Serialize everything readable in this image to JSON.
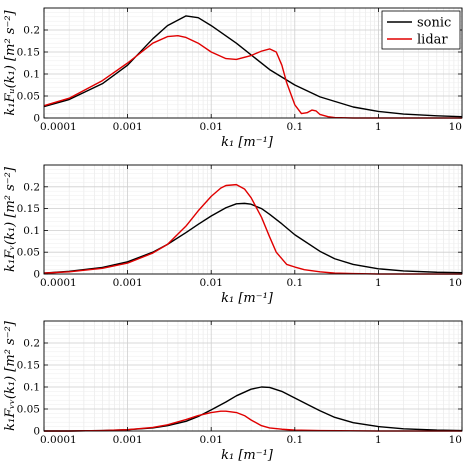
{
  "chart_data": [
    {
      "type": "line",
      "xscale": "log",
      "xlim": [
        0.0001,
        10
      ],
      "ylim": [
        0,
        0.25
      ],
      "grid": true,
      "xticks": [
        "0.0001",
        "0.001",
        "0.01",
        "0.1",
        "1",
        "10"
      ],
      "yticks": [
        "0",
        "0.05",
        "0.1",
        "0.15",
        "0.2"
      ],
      "ytick_values": [
        0,
        0.05,
        0.1,
        0.15,
        0.2
      ],
      "xlabel": "k₁ [m⁻¹]",
      "ylabel": "k₁Fᵤ(k₁) [m² s⁻²]",
      "legend": {
        "position": "top-right",
        "entries": [
          "sonic",
          "lidar"
        ]
      },
      "series": [
        {
          "name": "sonic",
          "color": "#000000",
          "x": [
            0.0001,
            0.0002,
            0.0005,
            0.001,
            0.002,
            0.003,
            0.005,
            0.007,
            0.01,
            0.02,
            0.05,
            0.1,
            0.2,
            0.5,
            1,
            2,
            5,
            10
          ],
          "y": [
            0.026,
            0.042,
            0.078,
            0.12,
            0.18,
            0.21,
            0.232,
            0.228,
            0.21,
            0.17,
            0.11,
            0.075,
            0.048,
            0.025,
            0.015,
            0.009,
            0.005,
            0.003
          ]
        },
        {
          "name": "lidar",
          "color": "#e00000",
          "x": [
            0.0001,
            0.0002,
            0.0005,
            0.001,
            0.002,
            0.003,
            0.004,
            0.005,
            0.007,
            0.01,
            0.015,
            0.02,
            0.03,
            0.04,
            0.05,
            0.06,
            0.07,
            0.08,
            0.1,
            0.12,
            0.14,
            0.16,
            0.18,
            0.2,
            0.25,
            0.3,
            0.5,
            1,
            10
          ],
          "y": [
            0.028,
            0.045,
            0.085,
            0.125,
            0.17,
            0.185,
            0.187,
            0.183,
            0.17,
            0.15,
            0.135,
            0.133,
            0.142,
            0.152,
            0.157,
            0.15,
            0.12,
            0.08,
            0.03,
            0.01,
            0.012,
            0.018,
            0.016,
            0.008,
            0.003,
            0.001,
            0.0,
            0.0,
            0.0
          ]
        }
      ]
    },
    {
      "type": "line",
      "xscale": "log",
      "xlim": [
        0.0001,
        10
      ],
      "ylim": [
        0,
        0.25
      ],
      "grid": true,
      "xticks": [
        "0.0001",
        "0.001",
        "0.01",
        "0.1",
        "1",
        "10"
      ],
      "yticks": [
        "0",
        "0.05",
        "0.1",
        "0.15",
        "0.2"
      ],
      "ytick_values": [
        0,
        0.05,
        0.1,
        0.15,
        0.2
      ],
      "xlabel": "k₁ [m⁻¹]",
      "ylabel": "k₁Fᵥ(k₁) [m² s⁻²]",
      "series": [
        {
          "name": "sonic",
          "color": "#000000",
          "x": [
            0.0001,
            0.0002,
            0.0005,
            0.001,
            0.002,
            0.003,
            0.005,
            0.007,
            0.01,
            0.015,
            0.02,
            0.025,
            0.03,
            0.04,
            0.05,
            0.07,
            0.1,
            0.2,
            0.3,
            0.5,
            1,
            2,
            5,
            10
          ],
          "y": [
            0.002,
            0.006,
            0.015,
            0.028,
            0.05,
            0.068,
            0.095,
            0.114,
            0.133,
            0.152,
            0.161,
            0.162,
            0.16,
            0.15,
            0.137,
            0.115,
            0.09,
            0.052,
            0.035,
            0.022,
            0.012,
            0.007,
            0.004,
            0.003
          ]
        },
        {
          "name": "lidar",
          "color": "#e00000",
          "x": [
            0.0001,
            0.0002,
            0.0005,
            0.001,
            0.002,
            0.003,
            0.005,
            0.007,
            0.01,
            0.013,
            0.015,
            0.02,
            0.025,
            0.03,
            0.04,
            0.05,
            0.06,
            0.08,
            0.1,
            0.13,
            0.2,
            0.3,
            0.5,
            1,
            10
          ],
          "y": [
            0.002,
            0.005,
            0.013,
            0.025,
            0.048,
            0.068,
            0.11,
            0.145,
            0.178,
            0.197,
            0.203,
            0.205,
            0.195,
            0.175,
            0.13,
            0.085,
            0.05,
            0.022,
            0.016,
            0.01,
            0.005,
            0.002,
            0.001,
            0.0,
            0.0
          ]
        }
      ]
    },
    {
      "type": "line",
      "xscale": "log",
      "xlim": [
        0.0001,
        10
      ],
      "ylim": [
        0,
        0.25
      ],
      "grid": true,
      "xticks": [
        "0.0001",
        "0.001",
        "0.01",
        "0.1",
        "1",
        "10"
      ],
      "yticks": [
        "0",
        "0.05",
        "0.1",
        "0.15",
        "0.2"
      ],
      "ytick_values": [
        0,
        0.05,
        0.1,
        0.15,
        0.2
      ],
      "xlabel": "k₁ [m⁻¹]",
      "ylabel": "k₁Fᵥᵥ(k₁) [m² s⁻²]",
      "series": [
        {
          "name": "sonic",
          "color": "#000000",
          "x": [
            0.0001,
            0.0002,
            0.0005,
            0.001,
            0.002,
            0.003,
            0.005,
            0.007,
            0.01,
            0.015,
            0.02,
            0.03,
            0.04,
            0.05,
            0.07,
            0.1,
            0.15,
            0.2,
            0.3,
            0.5,
            1,
            2,
            5,
            10
          ],
          "y": [
            0.0,
            0.0,
            0.001,
            0.003,
            0.007,
            0.012,
            0.022,
            0.033,
            0.048,
            0.066,
            0.08,
            0.095,
            0.1,
            0.099,
            0.09,
            0.075,
            0.058,
            0.046,
            0.031,
            0.019,
            0.01,
            0.005,
            0.002,
            0.001
          ]
        },
        {
          "name": "lidar",
          "color": "#e00000",
          "x": [
            0.0001,
            0.0002,
            0.0005,
            0.001,
            0.002,
            0.003,
            0.005,
            0.007,
            0.01,
            0.013,
            0.015,
            0.02,
            0.025,
            0.03,
            0.04,
            0.05,
            0.07,
            0.1,
            0.2,
            1,
            10
          ],
          "y": [
            0.0,
            0.0,
            0.001,
            0.003,
            0.008,
            0.014,
            0.026,
            0.035,
            0.042,
            0.045,
            0.045,
            0.042,
            0.035,
            0.025,
            0.012,
            0.007,
            0.004,
            0.002,
            0.001,
            0.0,
            0.0
          ]
        }
      ]
    }
  ]
}
